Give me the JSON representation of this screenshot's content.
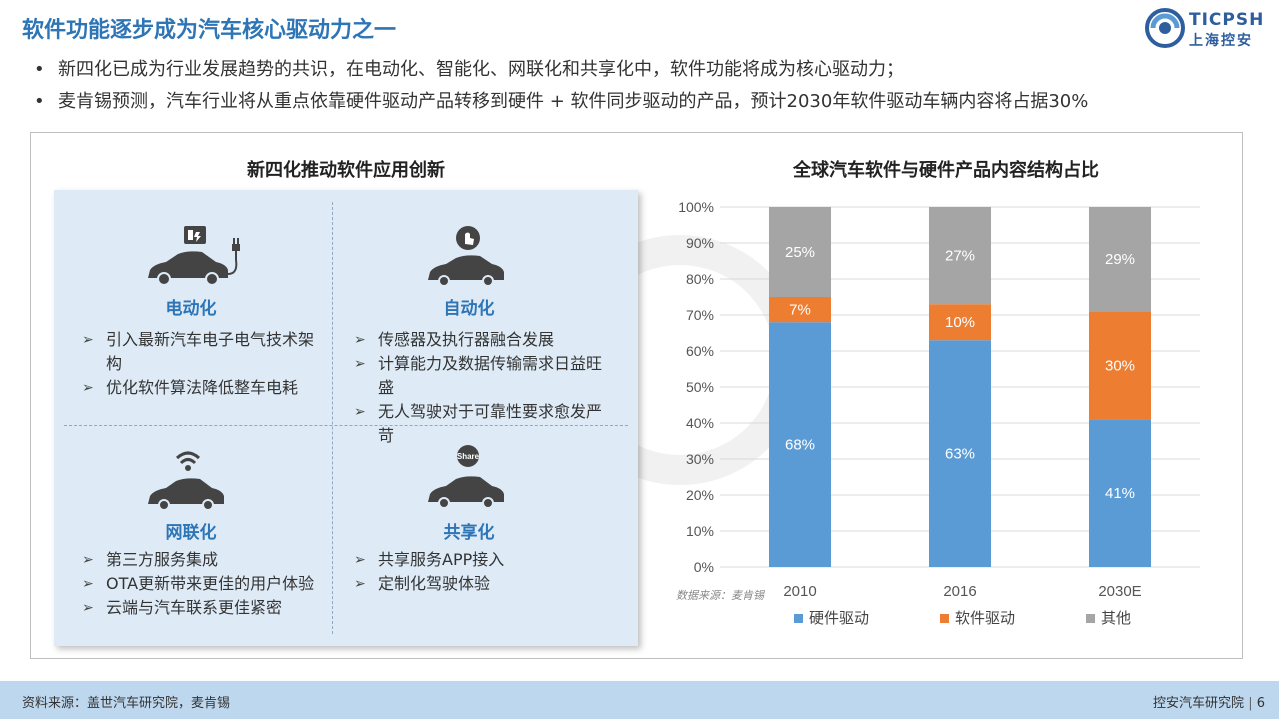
{
  "header": {
    "title": "软件功能逐步成为汽车核心驱动力之一",
    "logo_line1": "TICPSH",
    "logo_line2": "上海控安"
  },
  "bullets": [
    "新四化已成为行业发展趋势的共识，在电动化、智能化、网联化和共享化中，软件功能将成为核心驱动力；",
    "麦肯锡预测，汽车行业将从重点依靠硬件驱动产品转移到硬件 + 软件同步驱动的产品，预计2030年软件驱动车辆内容将占据30%"
  ],
  "left_panel": {
    "title": "新四化推动软件应用创新",
    "quadrants": [
      {
        "title": "电动化",
        "icon": "electric-car-icon",
        "items": [
          "引入最新汽车电子电气技术架构",
          "优化软件算法降低整车电耗"
        ]
      },
      {
        "title": "自动化",
        "icon": "autonomous-car-icon",
        "items": [
          "传感器及执行器融合发展",
          "计算能力及数据传输需求日益旺盛",
          "无人驾驶对于可靠性要求愈发严苛"
        ]
      },
      {
        "title": "网联化",
        "icon": "connected-car-icon",
        "items": [
          "第三方服务集成",
          "OTA更新带来更佳的用户体验",
          "云端与汽车联系更佳紧密"
        ]
      },
      {
        "title": "共享化",
        "icon": "shared-car-icon",
        "items": [
          "共享服务APP接入",
          "定制化驾驶体验"
        ]
      }
    ]
  },
  "chart_data": {
    "type": "bar",
    "stacked": true,
    "title": "全球汽车软件与硬件产品内容结构占比",
    "categories": [
      "2010",
      "2016",
      "2030E"
    ],
    "series": [
      {
        "name": "硬件驱动",
        "values": [
          68,
          63,
          41
        ],
        "color": "#5B9BD5"
      },
      {
        "name": "软件驱动",
        "values": [
          7,
          10,
          30
        ],
        "color": "#ED7D31"
      },
      {
        "name": "其他",
        "values": [
          25,
          27,
          29
        ],
        "color": "#A5A5A5"
      }
    ],
    "ylim": [
      0,
      100
    ],
    "yticks": [
      "0%",
      "10%",
      "20%",
      "30%",
      "40%",
      "50%",
      "60%",
      "70%",
      "80%",
      "90%",
      "100%"
    ],
    "grid": true,
    "legend": "bottom",
    "source": "数据来源：麦肯锡"
  },
  "footer": {
    "source": "资料来源：盖世汽车研究院，麦肯锡",
    "org": "控安汽车研究院",
    "page": "6"
  }
}
